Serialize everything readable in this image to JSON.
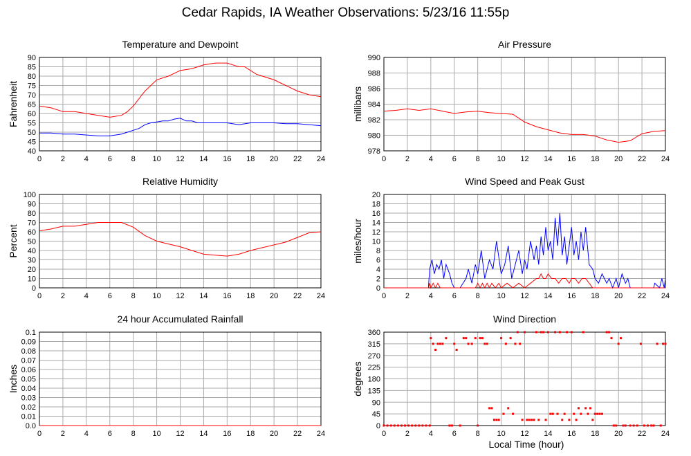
{
  "page": {
    "title": "Cedar Rapids, IA Weather Observations: 5/23/16 11:55p",
    "xlabel": "Local Time (hour)"
  },
  "colors": {
    "primary": "#ff0000",
    "secondary": "#0000ff",
    "grid": "#aaaaaa"
  },
  "chart_data": [
    {
      "id": "temp",
      "type": "line",
      "title": "Temperature and Dewpoint",
      "ylabel": "Fahrenheit",
      "xlim": [
        0,
        24
      ],
      "ylim": [
        40,
        90
      ],
      "xticks": [
        "0",
        "2",
        "4",
        "6",
        "8",
        "10",
        "12",
        "14",
        "16",
        "18",
        "20",
        "22",
        "24"
      ],
      "yticks": [
        "40",
        "45",
        "50",
        "55",
        "60",
        "65",
        "70",
        "75",
        "80",
        "85",
        "90"
      ],
      "grid": true,
      "series": [
        {
          "color": "#ff0000",
          "x": [
            0,
            1,
            2,
            3,
            4,
            5,
            6,
            7,
            7.5,
            8,
            8.5,
            9,
            9.5,
            10,
            10.5,
            11,
            12,
            13,
            14,
            15,
            16,
            16.5,
            17,
            17.5,
            18,
            18.5,
            19,
            20,
            21,
            22,
            23,
            24
          ],
          "y": [
            64,
            63,
            61,
            61,
            60,
            59,
            58,
            59,
            61,
            64,
            68,
            72,
            75,
            78,
            79,
            80,
            83,
            84,
            86,
            87,
            87,
            86,
            85,
            85,
            83,
            81,
            80,
            78,
            75,
            72,
            70,
            69
          ]
        },
        {
          "color": "#0000ff",
          "x": [
            0,
            1,
            2,
            3,
            4,
            5,
            6,
            7,
            7.5,
            8,
            8.5,
            9,
            9.5,
            10,
            10.5,
            11,
            11.5,
            12,
            12.5,
            13,
            13.5,
            14,
            15,
            16,
            17,
            18,
            19,
            20,
            21,
            22,
            23,
            24
          ],
          "y": [
            49.5,
            49.5,
            49,
            49,
            48.5,
            48,
            48,
            49,
            50,
            51,
            52,
            54,
            55,
            55.5,
            56,
            56,
            57,
            57.5,
            56,
            56,
            55,
            55,
            55,
            55,
            54,
            55,
            55,
            55,
            54.5,
            54.5,
            54,
            53.5
          ]
        }
      ]
    },
    {
      "id": "pres",
      "type": "line",
      "title": "Air Pressure",
      "ylabel": "millibars",
      "xlim": [
        0,
        24
      ],
      "ylim": [
        978,
        990
      ],
      "xticks": [
        "0",
        "2",
        "4",
        "6",
        "8",
        "10",
        "12",
        "14",
        "16",
        "18",
        "20",
        "22",
        "24"
      ],
      "yticks": [
        "978",
        "980",
        "982",
        "984",
        "986",
        "988",
        "990"
      ],
      "grid": true,
      "series": [
        {
          "color": "#ff0000",
          "x": [
            0,
            1,
            2,
            3,
            4,
            5,
            6,
            7,
            8,
            9,
            10,
            11,
            12,
            13,
            14,
            15,
            16,
            17,
            18,
            19,
            20,
            21,
            22,
            23,
            24
          ],
          "y": [
            983.1,
            983.2,
            983.4,
            983.2,
            983.4,
            983.1,
            982.8,
            983.0,
            983.1,
            982.9,
            982.8,
            982.7,
            981.7,
            981.1,
            980.7,
            980.3,
            980.1,
            980.1,
            979.9,
            979.4,
            979.1,
            979.3,
            980.2,
            980.5,
            980.6
          ]
        }
      ]
    },
    {
      "id": "rh",
      "type": "line",
      "title": "Relative Humidity",
      "ylabel": "Percent",
      "xlim": [
        0,
        24
      ],
      "ylim": [
        0,
        100
      ],
      "xticks": [
        "0",
        "2",
        "4",
        "6",
        "8",
        "10",
        "12",
        "14",
        "16",
        "18",
        "20",
        "22",
        "24"
      ],
      "yticks": [
        "0",
        "10",
        "20",
        "30",
        "40",
        "50",
        "60",
        "70",
        "80",
        "90",
        "100"
      ],
      "grid": true,
      "series": [
        {
          "color": "#ff0000",
          "x": [
            0,
            1,
            2,
            3,
            4,
            5,
            6,
            7,
            8,
            9,
            10,
            11,
            12,
            13,
            14,
            15,
            16,
            17,
            18,
            19,
            20,
            21,
            22,
            23,
            24
          ],
          "y": [
            61,
            63,
            66,
            66,
            68,
            70,
            70,
            70,
            65,
            56,
            50,
            47,
            44,
            40,
            36,
            35,
            34,
            36,
            40,
            43,
            46,
            49,
            54,
            59,
            60
          ]
        }
      ]
    },
    {
      "id": "wind",
      "type": "line",
      "title": "Wind Speed and Peak Gust",
      "ylabel": "miles/hour",
      "xlim": [
        0,
        24
      ],
      "ylim": [
        0,
        20
      ],
      "xticks": [
        "0",
        "2",
        "4",
        "6",
        "8",
        "10",
        "12",
        "14",
        "16",
        "18",
        "20",
        "22",
        "24"
      ],
      "yticks": [
        "0",
        "2",
        "4",
        "6",
        "8",
        "10",
        "12",
        "14",
        "16",
        "18",
        "20"
      ],
      "grid": true,
      "series": [
        {
          "color": "#0000ff",
          "x": [
            0,
            3.8,
            3.9,
            4.1,
            4.3,
            4.5,
            4.7,
            4.9,
            5.1,
            5.3,
            5.6,
            5.8,
            6,
            6.2,
            6.5,
            7,
            7.2,
            7.5,
            7.8,
            8,
            8.3,
            8.6,
            9,
            9.3,
            9.6,
            10,
            10.3,
            10.6,
            10.9,
            11.2,
            11.5,
            11.8,
            12,
            12.2,
            12.5,
            12.8,
            13,
            13.2,
            13.4,
            13.6,
            13.8,
            14,
            14.2,
            14.4,
            14.6,
            14.8,
            15,
            15.2,
            15.4,
            15.6,
            15.8,
            16,
            16.2,
            16.4,
            16.6,
            16.8,
            17,
            17.2,
            17.5,
            17.8,
            18,
            18.3,
            18.6,
            19,
            19.2,
            19.5,
            19.8,
            20,
            20.3,
            20.6,
            20.8,
            21,
            21.2,
            23,
            23.1,
            23.5,
            23.7,
            23.9,
            24
          ],
          "y": [
            0,
            0,
            4,
            6,
            3,
            5,
            4,
            6,
            2,
            5,
            3,
            1,
            0,
            0,
            0,
            2,
            4,
            1,
            5,
            3,
            8,
            2,
            6,
            4,
            10,
            3,
            5,
            9,
            2,
            5,
            8,
            3,
            6,
            4,
            10,
            6,
            9,
            5,
            11,
            7,
            13,
            8,
            10,
            6,
            15,
            9,
            16,
            7,
            11,
            5,
            9,
            13,
            7,
            10,
            6,
            12,
            8,
            13,
            5,
            4,
            2,
            1,
            3,
            1,
            2,
            0,
            2,
            0,
            3,
            1,
            2,
            0,
            0,
            0,
            1,
            0,
            2,
            0,
            2
          ]
        },
        {
          "color": "#ff0000",
          "x": [
            0,
            3.8,
            3.9,
            4,
            4.2,
            4.4,
            4.6,
            4.8,
            5,
            7.5,
            7.8,
            8,
            8.2,
            8.4,
            8.6,
            8.8,
            9,
            9.2,
            9.5,
            9.8,
            10,
            10.5,
            11,
            11.5,
            12,
            12.5,
            13,
            13.2,
            13.4,
            13.6,
            13.8,
            14,
            14.3,
            14.6,
            14.9,
            15.2,
            15.5,
            15.8,
            16,
            16.3,
            16.6,
            16.9,
            17.2,
            17.5,
            17.8,
            18,
            24
          ],
          "y": [
            0,
            0,
            1,
            0,
            1,
            0,
            1,
            0,
            0,
            0,
            0,
            1,
            0,
            1,
            0,
            1,
            0,
            1,
            0,
            1,
            0,
            1,
            0,
            1,
            0,
            1,
            2,
            2,
            3,
            2,
            2,
            3,
            2,
            2,
            1,
            2,
            2,
            1,
            2,
            2,
            1,
            2,
            2,
            1,
            0,
            0,
            0
          ]
        }
      ]
    },
    {
      "id": "rain",
      "type": "line",
      "title": "24 hour Accumulated Rainfall",
      "ylabel": "Inches",
      "xlim": [
        0,
        24
      ],
      "ylim": [
        0,
        0.1
      ],
      "xticks": [
        "0",
        "2",
        "4",
        "6",
        "8",
        "10",
        "12",
        "14",
        "16",
        "18",
        "20",
        "22",
        "24"
      ],
      "yticks": [
        "0.0",
        "0.01",
        "0.02",
        "0.03",
        "0.04",
        "0.05",
        "0.06",
        "0.07",
        "0.08",
        "0.09",
        "0.1"
      ],
      "grid": true,
      "series": [
        {
          "color": "#ff0000",
          "x": [
            0,
            24
          ],
          "y": [
            0,
            0
          ]
        }
      ]
    },
    {
      "id": "wdir",
      "type": "scatter",
      "title": "Wind Direction",
      "ylabel": "degrees",
      "xlim": [
        0,
        24
      ],
      "ylim": [
        0,
        360
      ],
      "xticks": [
        "0",
        "2",
        "4",
        "6",
        "8",
        "10",
        "12",
        "14",
        "16",
        "18",
        "20",
        "22",
        "24"
      ],
      "yticks": [
        "0",
        "45",
        "90",
        "135",
        "180",
        "225",
        "270",
        "315",
        "360"
      ],
      "grid": true,
      "series": [
        {
          "color": "#ff0000",
          "x": [
            0,
            0.3,
            0.6,
            0.9,
            1.2,
            1.5,
            1.8,
            2.1,
            2.4,
            2.7,
            3,
            3.3,
            3.6,
            3.9,
            4,
            4.2,
            4.4,
            4.6,
            4.8,
            5,
            5.3,
            5.6,
            5.8,
            6,
            6.2,
            6.5,
            6.8,
            7,
            7.2,
            7.5,
            7.8,
            8,
            8.2,
            8.4,
            8.6,
            8.8,
            9,
            9.2,
            9.4,
            9.6,
            9.8,
            10,
            10.2,
            10.4,
            10.6,
            10.8,
            11,
            11.2,
            11.4,
            11.6,
            11.8,
            12,
            12.2,
            12.4,
            12.6,
            12.8,
            13,
            13.2,
            13.4,
            13.6,
            13.8,
            14,
            14.2,
            14.4,
            14.6,
            14.8,
            15,
            15.2,
            15.4,
            15.6,
            15.8,
            16,
            16.2,
            16.4,
            16.6,
            16.8,
            17,
            17.2,
            17.4,
            17.6,
            17.8,
            18,
            18.2,
            18.4,
            18.6,
            19,
            19.2,
            19.4,
            19.6,
            19.8,
            20,
            20.2,
            20.4,
            20.6,
            21,
            21.3,
            21.6,
            21.9,
            22.2,
            22.5,
            22.8,
            23,
            23.3,
            23.6,
            23.8,
            24
          ],
          "y": [
            0,
            0,
            0,
            0,
            0,
            0,
            0,
            0,
            0,
            0,
            0,
            0,
            0,
            0,
            337,
            315,
            292,
            315,
            315,
            315,
            337,
            0,
            0,
            315,
            292,
            0,
            337,
            337,
            315,
            315,
            337,
            0,
            337,
            337,
            315,
            315,
            67,
            67,
            22,
            22,
            22,
            337,
            45,
            315,
            67,
            337,
            45,
            315,
            360,
            315,
            22,
            360,
            22,
            22,
            22,
            22,
            360,
            22,
            360,
            360,
            22,
            360,
            45,
            45,
            360,
            45,
            360,
            22,
            45,
            360,
            22,
            360,
            45,
            22,
            67,
            45,
            360,
            67,
            45,
            67,
            22,
            45,
            45,
            45,
            45,
            360,
            360,
            337,
            0,
            0,
            315,
            337,
            0,
            0,
            0,
            0,
            0,
            315,
            0,
            0,
            0,
            0,
            315,
            0,
            315,
            315
          ]
        }
      ]
    }
  ]
}
